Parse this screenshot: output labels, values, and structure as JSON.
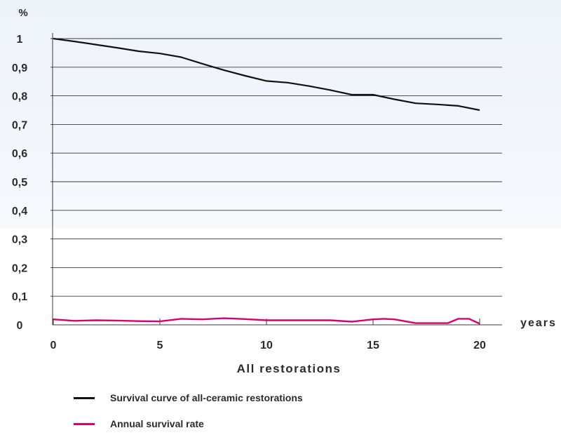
{
  "chart_data": {
    "type": "line",
    "y_unit": "%",
    "x_unit": "years",
    "xlabel": "All restorations",
    "x_ticks": [
      "0",
      "5",
      "10",
      "15",
      "20"
    ],
    "y_ticks": [
      "0",
      "0,1",
      "0,2",
      "0,3",
      "0,4",
      "0,5",
      "0,6",
      "0,7",
      "0,8",
      "0,9",
      "1"
    ],
    "xlim": [
      0,
      21
    ],
    "ylim": [
      0,
      1
    ],
    "grid": true,
    "legend_position": "bottom-left",
    "series": [
      {
        "name": "Survival curve of all-ceramic restorations",
        "color": "#111111",
        "x": [
          0,
          1,
          2,
          3,
          4,
          5,
          6,
          7,
          8,
          9,
          10,
          11,
          12,
          13,
          14,
          15,
          16,
          17,
          18,
          19,
          20
        ],
        "y": [
          1.0,
          0.99,
          0.979,
          0.968,
          0.956,
          0.948,
          0.935,
          0.912,
          0.89,
          0.87,
          0.852,
          0.846,
          0.834,
          0.82,
          0.804,
          0.804,
          0.788,
          0.774,
          0.77,
          0.765,
          0.75
        ]
      },
      {
        "name": "Annual survival rate",
        "color": "#d6006e",
        "x": [
          0,
          1,
          2,
          3,
          4,
          5,
          6,
          7,
          8,
          9,
          10,
          11,
          12,
          13,
          14,
          15,
          15.5,
          16,
          17,
          18,
          18.5,
          19,
          19.5,
          20
        ],
        "y": [
          0.019,
          0.014,
          0.016,
          0.015,
          0.013,
          0.012,
          0.021,
          0.019,
          0.023,
          0.02,
          0.016,
          0.016,
          0.016,
          0.016,
          0.011,
          0.019,
          0.021,
          0.019,
          0.006,
          0.006,
          0.006,
          0.021,
          0.021,
          0.004
        ]
      }
    ]
  }
}
